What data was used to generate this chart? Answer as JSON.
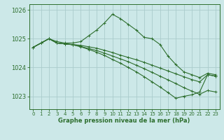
{
  "background_color": "#cce8e8",
  "grid_color": "#aacccc",
  "line_color": "#2d6e2d",
  "title": "Graphe pression niveau de la mer (hPa)",
  "ylim": [
    1022.55,
    1026.2
  ],
  "xlim": [
    -0.5,
    23.5
  ],
  "yticks": [
    1023,
    1024,
    1025,
    1026
  ],
  "xticks": [
    0,
    1,
    2,
    3,
    4,
    5,
    6,
    7,
    8,
    9,
    10,
    11,
    12,
    13,
    14,
    15,
    16,
    17,
    18,
    19,
    20,
    21,
    22,
    23
  ],
  "series": [
    {
      "x": [
        0,
        1,
        2,
        3,
        4,
        5,
        6,
        7,
        8,
        9,
        10,
        11,
        12,
        13,
        14,
        15,
        16,
        17,
        18,
        19,
        20,
        21,
        22,
        23
      ],
      "y": [
        1024.7,
        1024.85,
        1025.0,
        1024.9,
        1024.85,
        1024.85,
        1024.9,
        1025.1,
        1025.3,
        1025.55,
        1025.85,
        1025.7,
        1025.5,
        1025.3,
        1025.05,
        1025.0,
        1024.8,
        1024.4,
        1024.1,
        1023.85,
        1023.75,
        1023.65,
        1023.8,
        1023.75
      ]
    },
    {
      "x": [
        0,
        1,
        2,
        3,
        4,
        5,
        6,
        7,
        8,
        9,
        10,
        11,
        12,
        13,
        14,
        15,
        16,
        17,
        18,
        19,
        20,
        21,
        22,
        23
      ],
      "y": [
        1024.7,
        1024.85,
        1025.0,
        1024.85,
        1024.82,
        1024.8,
        1024.77,
        1024.72,
        1024.67,
        1024.6,
        1024.52,
        1024.43,
        1024.35,
        1024.27,
        1024.18,
        1024.08,
        1023.98,
        1023.88,
        1023.78,
        1023.68,
        1023.58,
        1023.5,
        1023.75,
        1023.7
      ]
    },
    {
      "x": [
        0,
        1,
        2,
        3,
        4,
        5,
        6,
        7,
        8,
        9,
        10,
        11,
        12,
        13,
        14,
        15,
        16,
        17,
        18,
        19,
        20,
        21,
        22,
        23
      ],
      "y": [
        1024.7,
        1024.85,
        1025.0,
        1024.85,
        1024.82,
        1024.79,
        1024.73,
        1024.66,
        1024.59,
        1024.5,
        1024.4,
        1024.3,
        1024.2,
        1024.08,
        1023.96,
        1023.83,
        1023.7,
        1023.57,
        1023.44,
        1023.3,
        1023.18,
        1023.07,
        1023.2,
        1023.15
      ]
    },
    {
      "x": [
        0,
        1,
        2,
        3,
        4,
        5,
        6,
        7,
        8,
        9,
        10,
        11,
        12,
        13,
        14,
        15,
        16,
        17,
        18,
        19,
        20,
        21,
        22,
        23
      ],
      "y": [
        1024.7,
        1024.85,
        1025.0,
        1024.85,
        1024.82,
        1024.79,
        1024.72,
        1024.63,
        1024.53,
        1024.42,
        1024.28,
        1024.15,
        1024.0,
        1023.85,
        1023.68,
        1023.5,
        1023.32,
        1023.13,
        1022.93,
        1023.0,
        1023.05,
        1023.15,
        1023.75,
        1023.7
      ]
    }
  ]
}
